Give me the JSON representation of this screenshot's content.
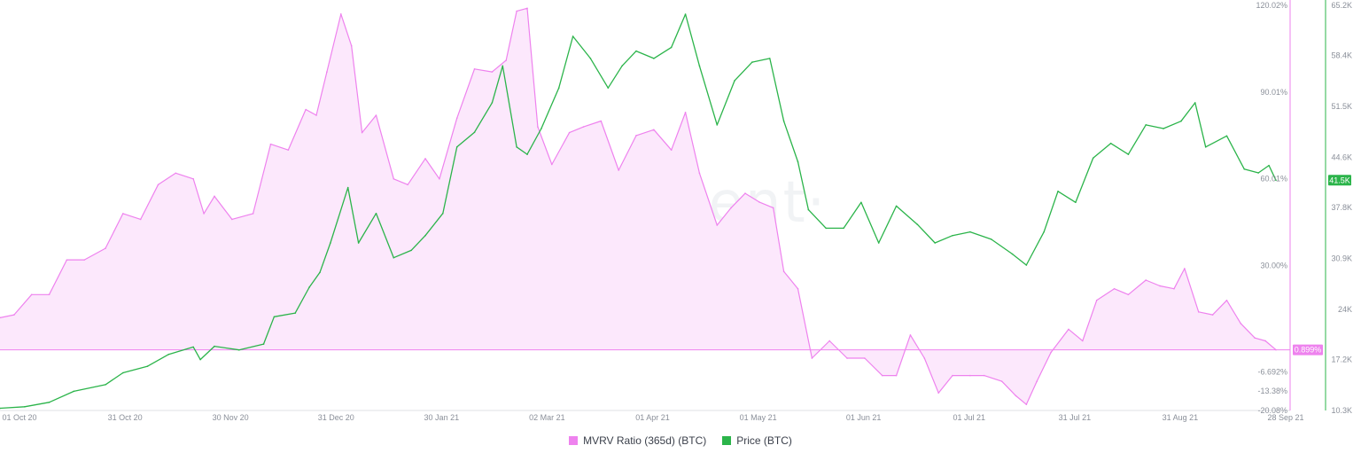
{
  "chart_data": {
    "type": "line",
    "watermark": "·santiment·",
    "x_tick_labels": [
      "01 Oct 20",
      "31 Oct 20",
      "30 Nov 20",
      "31 Dec 20",
      "30 Jan 21",
      "02 Mar 21",
      "01 Apr 21",
      "01 May 21",
      "01 Jun 21",
      "01 Jul 21",
      "31 Jul 21",
      "31 Aug 21",
      "28 Sep 21"
    ],
    "y_left": {
      "label": "",
      "ticks": [
        "120.02%",
        "90.01%",
        "60.01%",
        "30.00%",
        "-6.692%",
        "-13.38%",
        "-20.08%"
      ],
      "range": [
        -20.08,
        120.02
      ],
      "current_label": "0.899%"
    },
    "y_right": {
      "label": "",
      "ticks": [
        "65.2K",
        "58.4K",
        "51.5K",
        "44.6K",
        "37.8K",
        "30.9K",
        "24K",
        "17.2K",
        "10.3K"
      ],
      "range": [
        10.3,
        65.2
      ],
      "current_label": "41.5K"
    },
    "colors": {
      "mvrv": "#ee82ee",
      "mvrv_fill": "#fce8fc",
      "price": "#2bb44a",
      "axis": "#dfe2e6"
    },
    "series": [
      {
        "name": "MVRV Ratio (365d) (BTC)",
        "axis": "left",
        "points": [
          [
            "2020-10-01",
            12
          ],
          [
            "2020-10-05",
            13
          ],
          [
            "2020-10-10",
            20
          ],
          [
            "2020-10-15",
            20
          ],
          [
            "2020-10-20",
            32
          ],
          [
            "2020-10-25",
            32
          ],
          [
            "2020-10-31",
            36
          ],
          [
            "2020-11-05",
            48
          ],
          [
            "2020-11-10",
            46
          ],
          [
            "2020-11-15",
            58
          ],
          [
            "2020-11-20",
            62
          ],
          [
            "2020-11-25",
            60
          ],
          [
            "2020-11-28",
            48
          ],
          [
            "2020-12-01",
            54
          ],
          [
            "2020-12-06",
            46
          ],
          [
            "2020-12-12",
            48
          ],
          [
            "2020-12-17",
            72
          ],
          [
            "2020-12-22",
            70
          ],
          [
            "2020-12-27",
            84
          ],
          [
            "2020-12-30",
            82
          ],
          [
            "2021-01-02",
            97
          ],
          [
            "2021-01-06",
            117
          ],
          [
            "2021-01-09",
            106
          ],
          [
            "2021-01-12",
            76
          ],
          [
            "2021-01-16",
            82
          ],
          [
            "2021-01-21",
            60
          ],
          [
            "2021-01-25",
            58
          ],
          [
            "2021-01-30",
            67
          ],
          [
            "2021-02-03",
            60
          ],
          [
            "2021-02-08",
            81
          ],
          [
            "2021-02-13",
            98
          ],
          [
            "2021-02-18",
            97
          ],
          [
            "2021-02-22",
            101
          ],
          [
            "2021-02-25",
            118
          ],
          [
            "2021-02-28",
            119
          ],
          [
            "2021-03-03",
            78
          ],
          [
            "2021-03-07",
            65
          ],
          [
            "2021-03-12",
            76
          ],
          [
            "2021-03-16",
            78
          ],
          [
            "2021-03-21",
            80
          ],
          [
            "2021-03-26",
            63
          ],
          [
            "2021-03-31",
            75
          ],
          [
            "2021-04-05",
            77
          ],
          [
            "2021-04-10",
            70
          ],
          [
            "2021-04-14",
            83
          ],
          [
            "2021-04-18",
            62
          ],
          [
            "2021-04-23",
            44
          ],
          [
            "2021-04-27",
            50
          ],
          [
            "2021-05-01",
            55
          ],
          [
            "2021-05-05",
            52
          ],
          [
            "2021-05-09",
            50
          ],
          [
            "2021-05-12",
            28
          ],
          [
            "2021-05-16",
            22
          ],
          [
            "2021-05-20",
            -2
          ],
          [
            "2021-05-25",
            4
          ],
          [
            "2021-05-30",
            -2
          ],
          [
            "2021-06-04",
            -2
          ],
          [
            "2021-06-09",
            -8
          ],
          [
            "2021-06-13",
            -8
          ],
          [
            "2021-06-17",
            6
          ],
          [
            "2021-06-21",
            -2
          ],
          [
            "2021-06-25",
            -14
          ],
          [
            "2021-06-29",
            -8
          ],
          [
            "2021-07-04",
            -8
          ],
          [
            "2021-07-08",
            -8
          ],
          [
            "2021-07-13",
            -10
          ],
          [
            "2021-07-17",
            -15
          ],
          [
            "2021-07-20",
            -18
          ],
          [
            "2021-07-23",
            -10
          ],
          [
            "2021-07-27",
            0
          ],
          [
            "2021-08-01",
            8
          ],
          [
            "2021-08-05",
            4
          ],
          [
            "2021-08-09",
            18
          ],
          [
            "2021-08-14",
            22
          ],
          [
            "2021-08-18",
            20
          ],
          [
            "2021-08-23",
            25
          ],
          [
            "2021-08-27",
            23
          ],
          [
            "2021-08-31",
            22
          ],
          [
            "2021-09-03",
            29
          ],
          [
            "2021-09-07",
            14
          ],
          [
            "2021-09-11",
            13
          ],
          [
            "2021-09-15",
            18
          ],
          [
            "2021-09-19",
            10
          ],
          [
            "2021-09-23",
            5
          ],
          [
            "2021-09-26",
            4
          ],
          [
            "2021-09-29",
            0.9
          ]
        ]
      },
      {
        "name": "Price (BTC)",
        "axis": "right",
        "points": [
          [
            "2020-10-01",
            10.6
          ],
          [
            "2020-10-08",
            10.8
          ],
          [
            "2020-10-15",
            11.4
          ],
          [
            "2020-10-22",
            12.9
          ],
          [
            "2020-10-31",
            13.8
          ],
          [
            "2020-11-05",
            15.4
          ],
          [
            "2020-11-12",
            16.3
          ],
          [
            "2020-11-18",
            17.9
          ],
          [
            "2020-11-25",
            18.9
          ],
          [
            "2020-11-27",
            17.2
          ],
          [
            "2020-12-01",
            19.0
          ],
          [
            "2020-12-08",
            18.5
          ],
          [
            "2020-12-15",
            19.3
          ],
          [
            "2020-12-18",
            23.0
          ],
          [
            "2020-12-24",
            23.5
          ],
          [
            "2020-12-28",
            27.0
          ],
          [
            "2020-12-31",
            29.0
          ],
          [
            "2021-01-03",
            33.0
          ],
          [
            "2021-01-08",
            40.5
          ],
          [
            "2021-01-11",
            33.0
          ],
          [
            "2021-01-16",
            37.0
          ],
          [
            "2021-01-21",
            31.0
          ],
          [
            "2021-01-26",
            32.0
          ],
          [
            "2021-01-30",
            34.0
          ],
          [
            "2021-02-04",
            37.0
          ],
          [
            "2021-02-08",
            46.0
          ],
          [
            "2021-02-13",
            48.0
          ],
          [
            "2021-02-18",
            52.0
          ],
          [
            "2021-02-21",
            57.0
          ],
          [
            "2021-02-25",
            46.0
          ],
          [
            "2021-02-28",
            45.0
          ],
          [
            "2021-03-04",
            48.5
          ],
          [
            "2021-03-09",
            54.0
          ],
          [
            "2021-03-13",
            61.0
          ],
          [
            "2021-03-18",
            58.0
          ],
          [
            "2021-03-23",
            54.0
          ],
          [
            "2021-03-27",
            57.0
          ],
          [
            "2021-03-31",
            59.0
          ],
          [
            "2021-04-05",
            58.0
          ],
          [
            "2021-04-10",
            59.5
          ],
          [
            "2021-04-14",
            64.0
          ],
          [
            "2021-04-18",
            57.0
          ],
          [
            "2021-04-23",
            49.0
          ],
          [
            "2021-04-28",
            55.0
          ],
          [
            "2021-05-03",
            57.5
          ],
          [
            "2021-05-08",
            58.0
          ],
          [
            "2021-05-12",
            49.5
          ],
          [
            "2021-05-16",
            44.0
          ],
          [
            "2021-05-19",
            37.5
          ],
          [
            "2021-05-24",
            35.0
          ],
          [
            "2021-05-29",
            35.0
          ],
          [
            "2021-06-03",
            38.5
          ],
          [
            "2021-06-08",
            33.0
          ],
          [
            "2021-06-13",
            38.0
          ],
          [
            "2021-06-19",
            35.5
          ],
          [
            "2021-06-24",
            33.0
          ],
          [
            "2021-06-29",
            34.0
          ],
          [
            "2021-07-04",
            34.5
          ],
          [
            "2021-07-10",
            33.5
          ],
          [
            "2021-07-16",
            31.5
          ],
          [
            "2021-07-20",
            30.0
          ],
          [
            "2021-07-25",
            34.5
          ],
          [
            "2021-07-29",
            40.0
          ],
          [
            "2021-08-03",
            38.5
          ],
          [
            "2021-08-08",
            44.5
          ],
          [
            "2021-08-13",
            46.5
          ],
          [
            "2021-08-18",
            45.0
          ],
          [
            "2021-08-23",
            49.0
          ],
          [
            "2021-08-28",
            48.5
          ],
          [
            "2021-09-02",
            49.5
          ],
          [
            "2021-09-06",
            52.0
          ],
          [
            "2021-09-09",
            46.0
          ],
          [
            "2021-09-15",
            47.5
          ],
          [
            "2021-09-20",
            43.0
          ],
          [
            "2021-09-24",
            42.5
          ],
          [
            "2021-09-27",
            43.5
          ],
          [
            "2021-09-29",
            41.5
          ]
        ]
      }
    ]
  }
}
